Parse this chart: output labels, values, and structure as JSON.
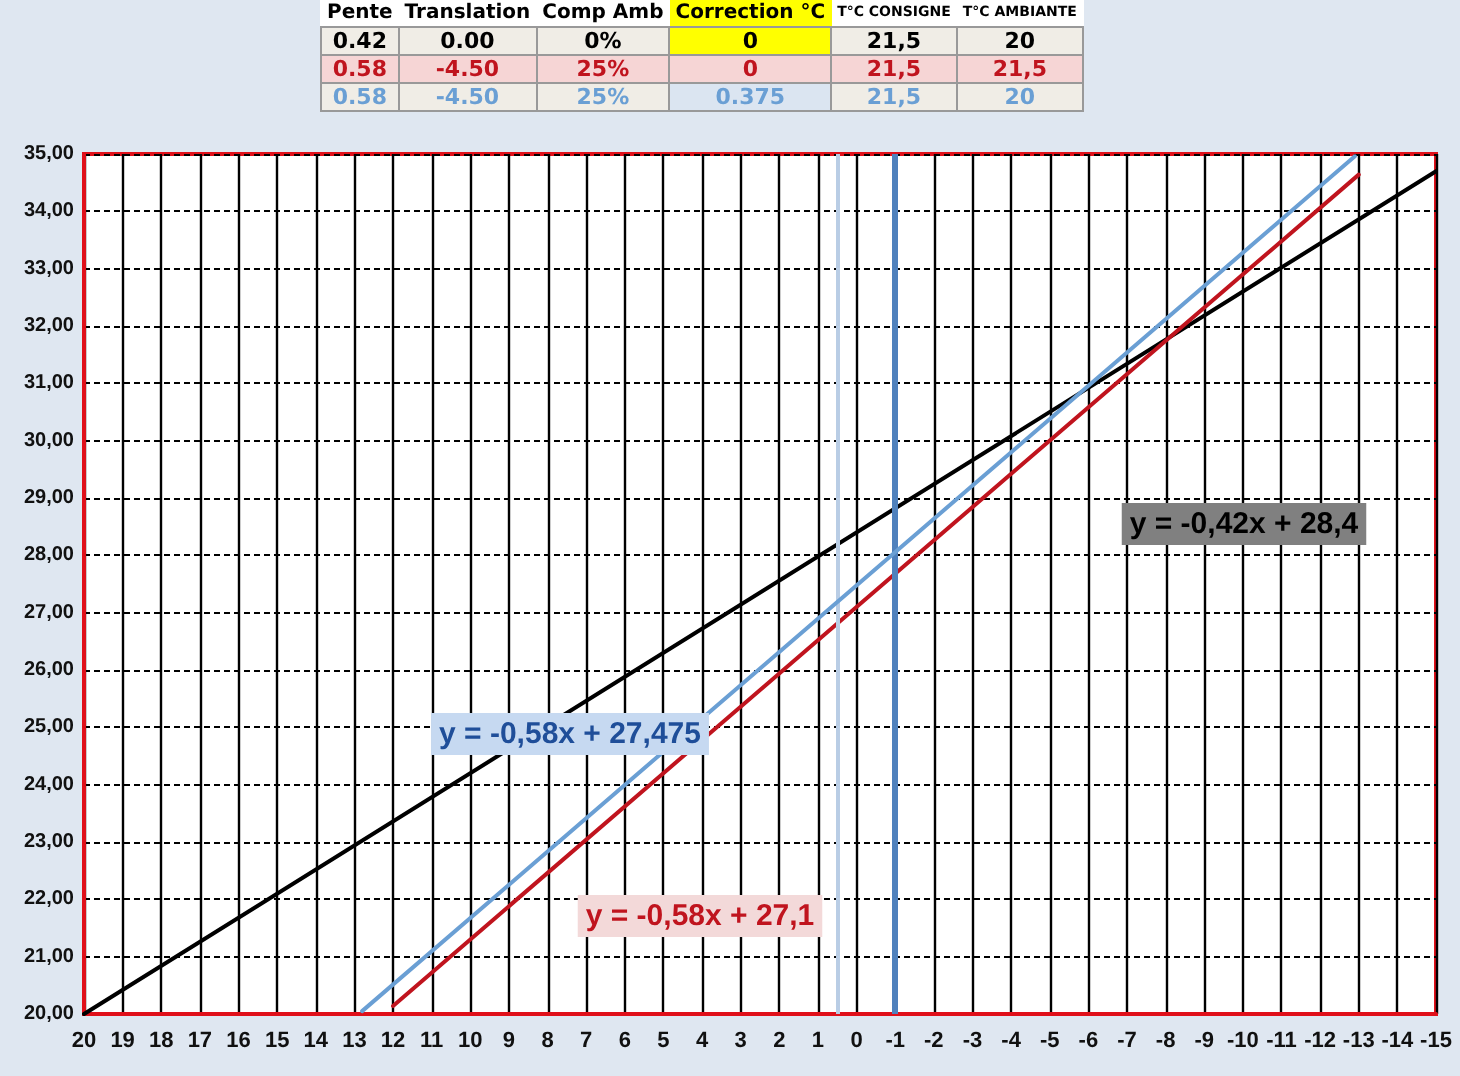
{
  "chart_data": {
    "type": "line",
    "xlim": [
      20,
      -15
    ],
    "xticks": [
      20,
      19,
      18,
      17,
      16,
      15,
      14,
      13,
      12,
      11,
      10,
      9,
      8,
      7,
      6,
      5,
      4,
      3,
      2,
      1,
      0,
      -1,
      -2,
      -3,
      -4,
      -5,
      -6,
      -7,
      -8,
      -9,
      -10,
      -11,
      -12,
      -13,
      -14,
      -15
    ],
    "ylim": [
      20,
      35
    ],
    "yticks": [
      {
        "value": 20,
        "label": "20,00"
      },
      {
        "value": 21,
        "label": "21,00"
      },
      {
        "value": 22,
        "label": "22,00"
      },
      {
        "value": 23,
        "label": "23,00"
      },
      {
        "value": 24,
        "label": "24,00"
      },
      {
        "value": 25,
        "label": "25,00"
      },
      {
        "value": 26,
        "label": "26,00"
      },
      {
        "value": 27,
        "label": "27,00"
      },
      {
        "value": 28,
        "label": "28,00"
      },
      {
        "value": 29,
        "label": "29,00"
      },
      {
        "value": 30,
        "label": "30,00"
      },
      {
        "value": 31,
        "label": "31,00"
      },
      {
        "value": 32,
        "label": "32,00"
      },
      {
        "value": 33,
        "label": "33,00"
      },
      {
        "value": 34,
        "label": "34,00"
      },
      {
        "value": 35,
        "label": "35,00"
      }
    ],
    "grid": true,
    "marker": "none",
    "line_style": "solid",
    "series": [
      {
        "color": "#000000",
        "x": [
          20,
          -15
        ],
        "values": [
          20,
          34.7
        ]
      },
      {
        "color": "#c0141e",
        "x": [
          12,
          -13
        ],
        "values": [
          20.14,
          34.64
        ]
      },
      {
        "color": "#6a9fd4",
        "x": [
          12.8,
          -12.9
        ],
        "values": [
          20.05,
          34.96
        ]
      }
    ],
    "ref_lines": [
      {
        "axis": "x",
        "value": 0.5,
        "color": "#b9cde5"
      },
      {
        "axis": "x",
        "value": -1,
        "color": "#4f81bd"
      }
    ],
    "annotations": [
      "Pente",
      "Translation",
      "Comp Amb",
      "Correction °C",
      "T°C CONSIGNE",
      "T°C AMBIANTE",
      "0.42",
      "0.00",
      "0%",
      "0",
      "21,5",
      "20",
      "0.58",
      "-4.50",
      "25%",
      "0",
      "21,5",
      "21,5",
      "0.58",
      "-4.50",
      "25%",
      "0.375",
      "21,5",
      "20",
      "y = -0,42x + 28,4",
      "y = -0,58x + 27,1",
      "y = -0,58x + 27,475"
    ]
  }
}
